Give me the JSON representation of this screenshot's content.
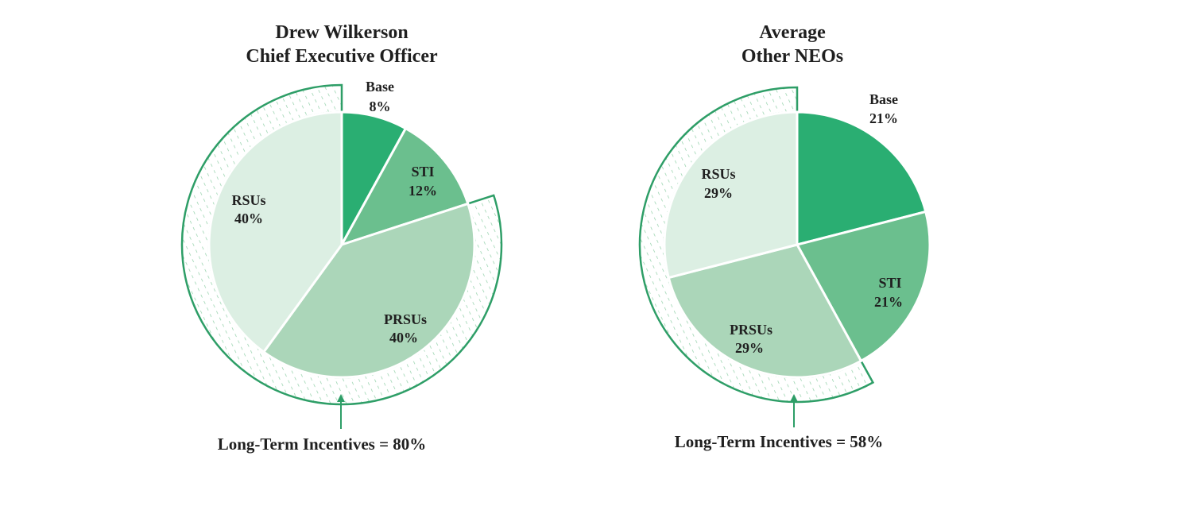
{
  "colors": {
    "base": "#2aae72",
    "sti": "#6bbf8e",
    "prsus": "#abd6b9",
    "rsus": "#dcefe3",
    "outline": "#2e9e67",
    "hatch": "#8fcfa6",
    "text": "#1f1f1f"
  },
  "chart_data": [
    {
      "type": "pie",
      "title_line1": "Drew Wilkerson",
      "title_line2": "Chief Executive Officer",
      "slices": [
        {
          "key": "base",
          "name": "Base",
          "value": 8,
          "label": "8%"
        },
        {
          "key": "sti",
          "name": "STI",
          "value": 12,
          "label": "12%"
        },
        {
          "key": "prsus",
          "name": "PRSUs",
          "value": 40,
          "label": "40%"
        },
        {
          "key": "rsus",
          "name": "RSUs",
          "value": 40,
          "label": "40%"
        }
      ],
      "ltip_label": "Long-Term Incentives = 80%",
      "ltip_value": 80
    },
    {
      "type": "pie",
      "title_line1": "Average",
      "title_line2": "Other NEOs",
      "slices": [
        {
          "key": "base",
          "name": "Base",
          "value": 21,
          "label": "21%"
        },
        {
          "key": "sti",
          "name": "STI",
          "value": 21,
          "label": "21%"
        },
        {
          "key": "prsus",
          "name": "PRSUs",
          "value": 29,
          "label": "29%"
        },
        {
          "key": "rsus",
          "name": "RSUs",
          "value": 29,
          "label": "29%"
        }
      ],
      "ltip_label": "Long-Term Incentives = 58%",
      "ltip_value": 58
    }
  ]
}
